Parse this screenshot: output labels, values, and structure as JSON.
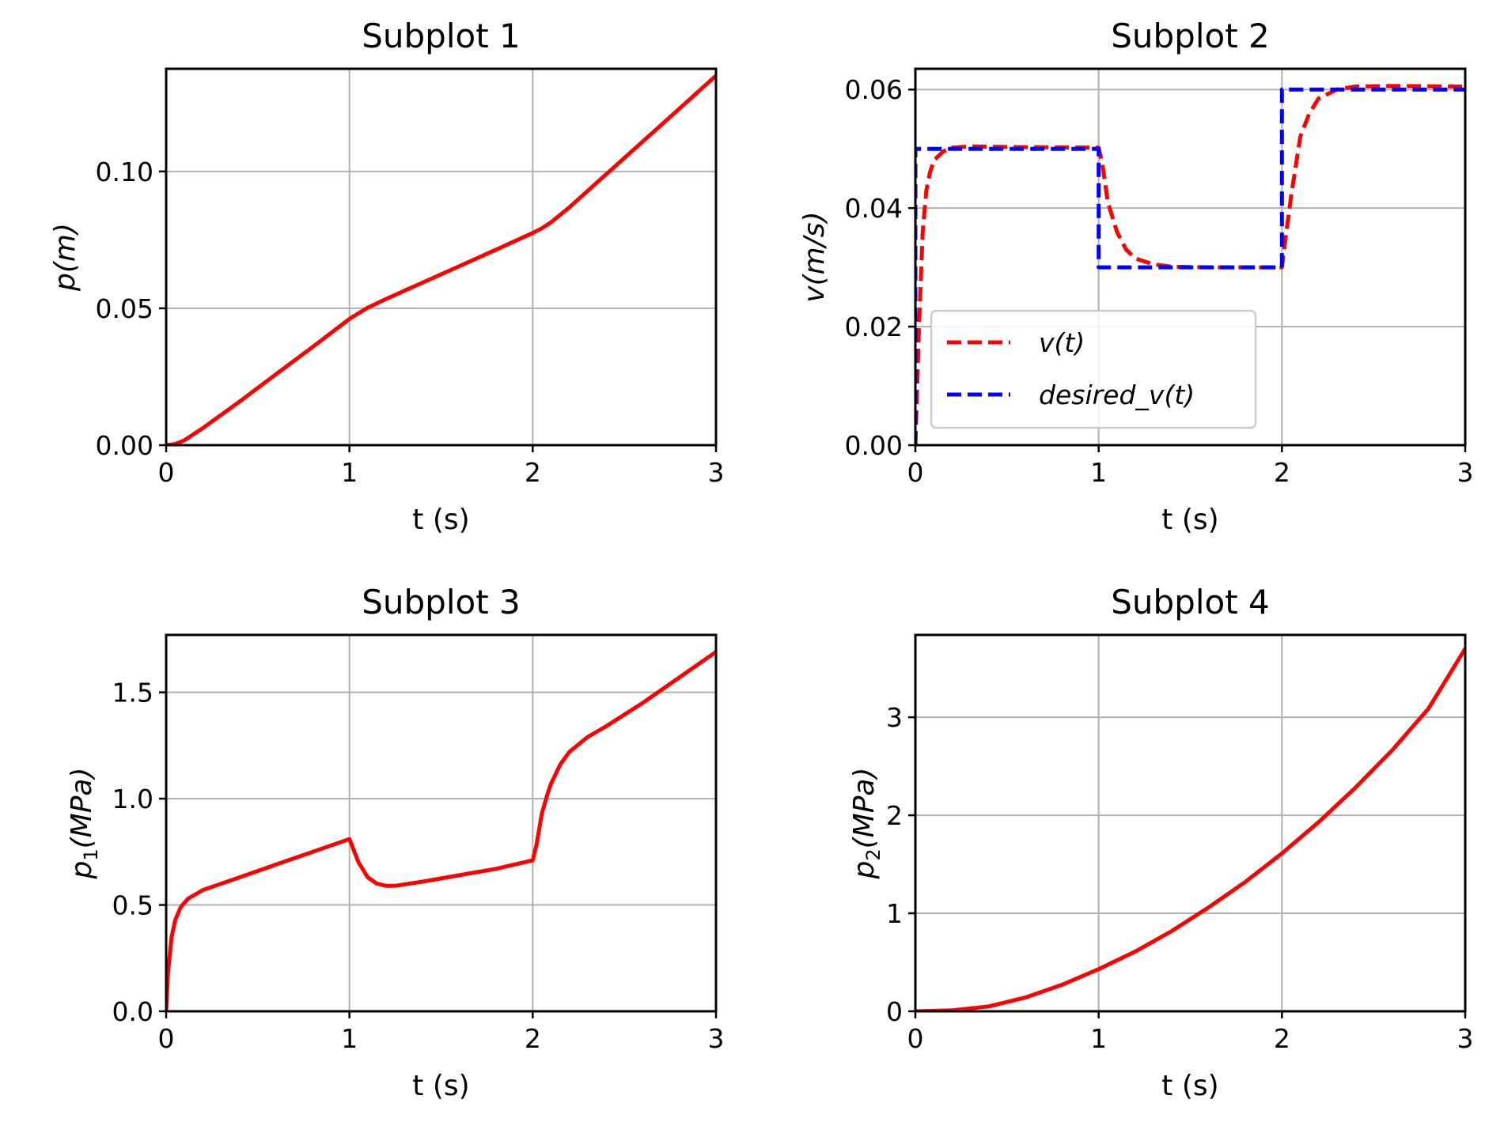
{
  "chart_data": [
    {
      "type": "line",
      "title": "Subplot 1",
      "xlabel": "t (s)",
      "ylabel": {
        "base": "p",
        "sub": "",
        "unit": "(m)"
      },
      "xlim": [
        0,
        3
      ],
      "ylim": [
        0,
        0.1375
      ],
      "xticks": [
        0,
        1,
        2,
        3
      ],
      "xtick_labels": [
        "0",
        "1",
        "2",
        "3"
      ],
      "yticks": [
        0,
        0.05,
        0.1
      ],
      "ytick_labels": [
        "0.00",
        "0.05",
        "0.10"
      ],
      "grid": true,
      "series": [
        {
          "name": "p(t)",
          "color": "#ff0000",
          "dash": "solid",
          "x": [
            0,
            0.05,
            0.1,
            0.2,
            0.4,
            0.6,
            0.8,
            1.0,
            1.05,
            1.1,
            1.2,
            1.4,
            1.6,
            1.8,
            2.0,
            2.05,
            2.1,
            2.2,
            2.4,
            2.6,
            2.8,
            3.0
          ],
          "y": [
            0,
            0.0004,
            0.0018,
            0.0062,
            0.0159,
            0.0259,
            0.0359,
            0.0461,
            0.0482,
            0.0502,
            0.0534,
            0.0594,
            0.0654,
            0.0714,
            0.0775,
            0.0792,
            0.0814,
            0.0869,
            0.0989,
            0.1109,
            0.1229,
            0.135
          ]
        }
      ]
    },
    {
      "type": "line",
      "title": "Subplot 2",
      "xlabel": "t (s)",
      "ylabel": {
        "base": "v",
        "sub": "",
        "unit": "(m/s)"
      },
      "xlim": [
        0,
        3
      ],
      "ylim": [
        0,
        0.0635
      ],
      "xticks": [
        0,
        1,
        2,
        3
      ],
      "xtick_labels": [
        "0",
        "1",
        "2",
        "3"
      ],
      "yticks": [
        0,
        0.02,
        0.04,
        0.06
      ],
      "ytick_labels": [
        "0.00",
        "0.02",
        "0.04",
        "0.06"
      ],
      "grid": true,
      "legend": {
        "position": "lower-left",
        "entries": [
          "v(t)",
          "desired_v(t)"
        ]
      },
      "series": [
        {
          "name": "v(t)",
          "color": "#ff0000",
          "dash": "dashed",
          "x": [
            0,
            0.02,
            0.04,
            0.06,
            0.08,
            0.1,
            0.15,
            0.2,
            0.3,
            0.5,
            1.0,
            1.02,
            1.05,
            1.1,
            1.15,
            1.2,
            1.3,
            1.4,
            1.6,
            2.0,
            2.02,
            2.05,
            2.1,
            2.15,
            2.2,
            2.3,
            2.4,
            2.6,
            3.0
          ],
          "y": [
            0,
            0.02,
            0.036,
            0.043,
            0.046,
            0.048,
            0.0495,
            0.0502,
            0.0504,
            0.0503,
            0.0502,
            0.0475,
            0.041,
            0.036,
            0.033,
            0.0315,
            0.0305,
            0.0301,
            0.03,
            0.03,
            0.035,
            0.042,
            0.052,
            0.056,
            0.0585,
            0.06,
            0.0605,
            0.0606,
            0.0605
          ]
        },
        {
          "name": "desired_v(t)",
          "color": "#0000ff",
          "dash": "dashed",
          "x": [
            0,
            0,
            1.0,
            1.0,
            2.0,
            2.0,
            3.0
          ],
          "y": [
            0,
            0.05,
            0.05,
            0.03,
            0.03,
            0.06,
            0.06
          ]
        }
      ]
    },
    {
      "type": "line",
      "title": "Subplot 3",
      "xlabel": "t (s)",
      "ylabel": {
        "base": "p",
        "sub": "1",
        "unit": "(MPa)"
      },
      "xlim": [
        0,
        3
      ],
      "ylim": [
        0,
        1.77
      ],
      "xticks": [
        0,
        1,
        2,
        3
      ],
      "xtick_labels": [
        "0",
        "1",
        "2",
        "3"
      ],
      "yticks": [
        0,
        0.5,
        1.0,
        1.5
      ],
      "ytick_labels": [
        "0.0",
        "0.5",
        "1.0",
        "1.5"
      ],
      "grid": true,
      "series": [
        {
          "name": "p1(t)",
          "color": "#ff0000",
          "dash": "solid",
          "x": [
            0,
            0.01,
            0.03,
            0.05,
            0.08,
            0.12,
            0.2,
            0.4,
            0.6,
            0.8,
            1.0,
            1.05,
            1.1,
            1.15,
            1.2,
            1.25,
            1.4,
            1.6,
            1.8,
            2.0,
            2.02,
            2.05,
            2.08,
            2.1,
            2.15,
            2.2,
            2.3,
            2.4,
            2.6,
            2.8,
            3.0
          ],
          "y": [
            0,
            0.18,
            0.35,
            0.43,
            0.49,
            0.53,
            0.57,
            0.63,
            0.69,
            0.75,
            0.81,
            0.7,
            0.63,
            0.6,
            0.59,
            0.59,
            0.61,
            0.64,
            0.67,
            0.71,
            0.78,
            0.93,
            1.02,
            1.07,
            1.16,
            1.22,
            1.29,
            1.34,
            1.45,
            1.57,
            1.69
          ]
        }
      ]
    },
    {
      "type": "line",
      "title": "Subplot 4",
      "xlabel": "t (s)",
      "ylabel": {
        "base": "p",
        "sub": "2",
        "unit": "(MPa)"
      },
      "xlim": [
        0,
        3
      ],
      "ylim": [
        0,
        3.84
      ],
      "xticks": [
        0,
        1,
        2,
        3
      ],
      "xtick_labels": [
        "0",
        "1",
        "2",
        "3"
      ],
      "yticks": [
        0,
        1,
        2,
        3
      ],
      "ytick_labels": [
        "0",
        "1",
        "2",
        "3"
      ],
      "grid": true,
      "series": [
        {
          "name": "p2(t)",
          "color": "#ff0000",
          "dash": "solid",
          "x": [
            0,
            0.2,
            0.4,
            0.6,
            0.8,
            1.0,
            1.2,
            1.4,
            1.6,
            1.8,
            2.0,
            2.2,
            2.4,
            2.6,
            2.8,
            3.0
          ],
          "y": [
            0,
            0.01,
            0.05,
            0.14,
            0.27,
            0.43,
            0.61,
            0.82,
            1.06,
            1.32,
            1.61,
            1.93,
            2.28,
            2.66,
            3.09,
            3.7
          ]
        }
      ]
    }
  ]
}
